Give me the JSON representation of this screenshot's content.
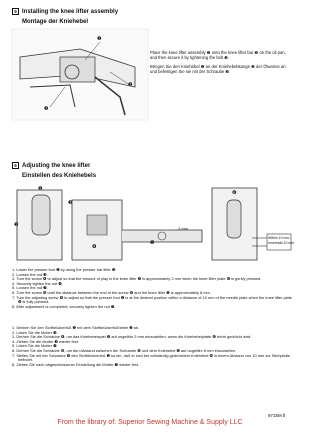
{
  "sections": [
    {
      "number": "5",
      "title_en": "Installing the knee lifter assembly",
      "title_de": "Montage der Kniehebel",
      "text_en": "Place the knee lifter assembly ❶ onto the knee lifter bar ❷ on the oil pan, and then secure it by tightening the bolt ❸.",
      "text_de": "Bringen Sie den Kniehebel ❶ an der Kniehebelstange ❷ der Ölwanne an und befestigen Sie sie mit der Schraube ❸.",
      "callouts": [
        "❶",
        "❷",
        "❸"
      ]
    },
    {
      "number": "6",
      "title_en": "Adjusting the knee lifter",
      "title_de": "Einstellen des Kniehebels",
      "figure_labels": [
        "2 mm",
        "Within 10 mm",
        "Innerhalb 10 mm"
      ],
      "callouts": [
        "❶",
        "❷",
        "❸",
        "❹",
        "❺",
        "❻"
      ],
      "steps_en": [
        "1. Lower the presser foot ❶ by using the presser bar lifter ❷.",
        "2. Loosen the nut ❸.",
        "3. Turn the screw ❹ to adjust so that the amount of play in the knee lifter ❺ is approximately 2 mm when the knee lifter plate ❻ is gently pressed.",
        "4. Securely tighten the nut ❸.",
        "5. Loosen the nut ❼.",
        "6. Turn the screw ❽ until the distance between the end of the screw ❽ and the knee lifter ❺ is approximately 8 mm.",
        "7. Turn the adjusting screw ❾ to adjust so that the presser foot ❶ is at the desired position within a distance of 10 mm of the needle plate when the knee lifter plate ❻ is fully pressed.",
        "8. After adjustment is completed, securely tighten the nut ❼."
      ],
      "steps_de": [
        "1. Senken Sie den Stoffdrückerfuß ❶ mit dem Stoffdrückerfußhebel ❷ ab.",
        "2. Lösen Sie die Mutter ❸.",
        "3. Drehen Sie die Schraube ❹, um das Kniehebelspiel ❺ auf ungefähr 2 mm einzustellen, wenn die Kniehebelplatte ❻ leicht gedrückt wird.",
        "4. Ziehen Sie die Mutter ❸ wieder fest.",
        "5. Lösen Sie die Mutter ❼.",
        "6. Drehen Sie die Schraube ❽, um den Abstand zwischen der Schraube ❽ und dem Kniehebel ❺ auf ungefähr 8 mm einzustellen.",
        "7. Stellen Sie mit der Schraube ❾ den Stoffdrückerfuß ❶ so ein, daß er sich bei vollständig gedrücktem Kniehebel ❻ in einem Abstand von 10 mm zur Stichplatte befindet.",
        "8. Ziehen Sie nach abgeschlossener Einstellung die Mutter ❼ wieder fest."
      ]
    }
  ],
  "footer": {
    "library": "From the library of: Superior Sewing Machine & Supply LLC",
    "page": "9715M Ⅱ"
  }
}
